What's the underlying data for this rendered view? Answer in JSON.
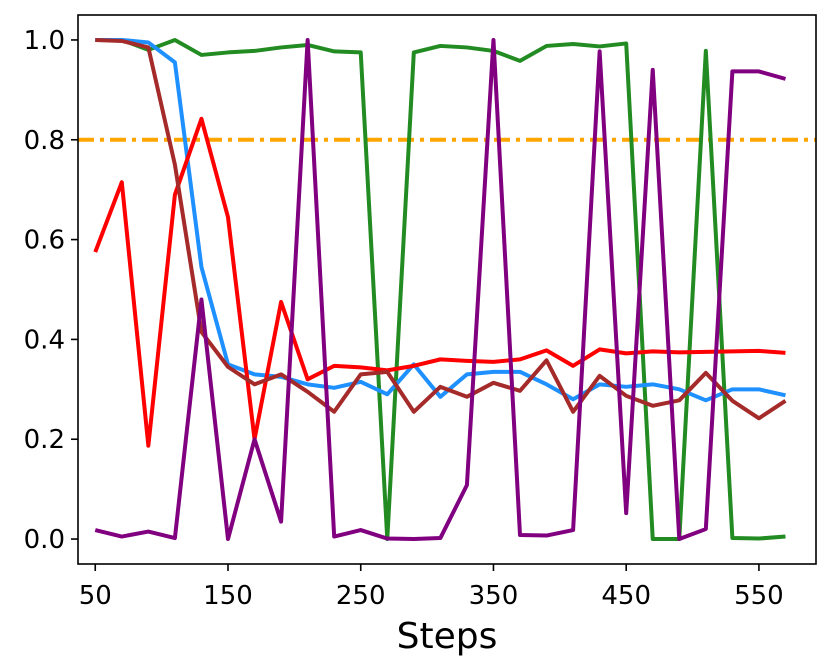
{
  "chart_data": {
    "type": "line",
    "title": "",
    "xlabel": "Steps",
    "ylabel": "",
    "xlim": [
      37,
      593
    ],
    "ylim": [
      -0.05,
      1.05
    ],
    "xticks": [
      50,
      150,
      250,
      350,
      450,
      550
    ],
    "xtick_labels": [
      "50",
      "150",
      "250",
      "350",
      "450",
      "550"
    ],
    "yticks": [
      0.0,
      0.2,
      0.4,
      0.6,
      0.8,
      1.0
    ],
    "ytick_labels": [
      "0.0",
      "0.2",
      "0.4",
      "0.6",
      "0.8",
      "1.0"
    ],
    "grid": false,
    "legend": "none",
    "x": [
      50,
      70,
      90,
      110,
      130,
      150,
      170,
      190,
      210,
      230,
      250,
      270,
      290,
      310,
      330,
      350,
      370,
      390,
      410,
      430,
      450,
      470,
      490,
      510,
      530,
      550,
      570
    ],
    "reference_lines": [
      {
        "name": "threshold",
        "y": 0.8,
        "color": "#ffa500",
        "style": "dashdot"
      }
    ],
    "series": [
      {
        "name": "green",
        "color": "#228b22",
        "values": [
          1.0,
          1.0,
          0.98,
          1.0,
          0.97,
          0.975,
          0.978,
          0.985,
          0.99,
          0.977,
          0.975,
          0.0,
          0.975,
          0.988,
          0.985,
          0.978,
          0.958,
          0.988,
          0.992,
          0.987,
          0.993,
          0.0,
          0.0,
          0.978,
          0.002,
          0.001,
          0.005
        ]
      },
      {
        "name": "blue",
        "color": "#1e90ff",
        "values": [
          1.0,
          1.0,
          0.995,
          0.955,
          0.545,
          0.35,
          0.33,
          0.325,
          0.31,
          0.303,
          0.315,
          0.29,
          0.35,
          0.285,
          0.33,
          0.335,
          0.335,
          0.31,
          0.28,
          0.31,
          0.305,
          0.31,
          0.3,
          0.278,
          0.3,
          0.3,
          0.288
        ]
      },
      {
        "name": "red",
        "color": "#ff0000",
        "values": [
          0.575,
          0.715,
          0.187,
          0.69,
          0.842,
          0.645,
          0.2,
          0.475,
          0.32,
          0.347,
          0.344,
          0.338,
          0.347,
          0.36,
          0.357,
          0.355,
          0.36,
          0.378,
          0.347,
          0.38,
          0.372,
          0.376,
          0.374,
          0.375,
          0.376,
          0.377,
          0.373
        ]
      },
      {
        "name": "brown",
        "color": "#a52a2a",
        "values": [
          1.0,
          0.998,
          0.985,
          0.75,
          0.415,
          0.345,
          0.31,
          0.33,
          0.295,
          0.255,
          0.33,
          0.335,
          0.255,
          0.305,
          0.285,
          0.313,
          0.297,
          0.358,
          0.255,
          0.327,
          0.287,
          0.267,
          0.278,
          0.333,
          0.277,
          0.242,
          0.277
        ]
      },
      {
        "name": "purple",
        "color": "#800080",
        "values": [
          0.018,
          0.005,
          0.015,
          0.002,
          0.48,
          0.0,
          0.2,
          0.035,
          1.0,
          0.005,
          0.018,
          0.001,
          0.0,
          0.002,
          0.108,
          1.0,
          0.008,
          0.007,
          0.018,
          0.977,
          0.052,
          0.94,
          0.0,
          0.02,
          0.937,
          0.937,
          0.922
        ]
      }
    ]
  }
}
